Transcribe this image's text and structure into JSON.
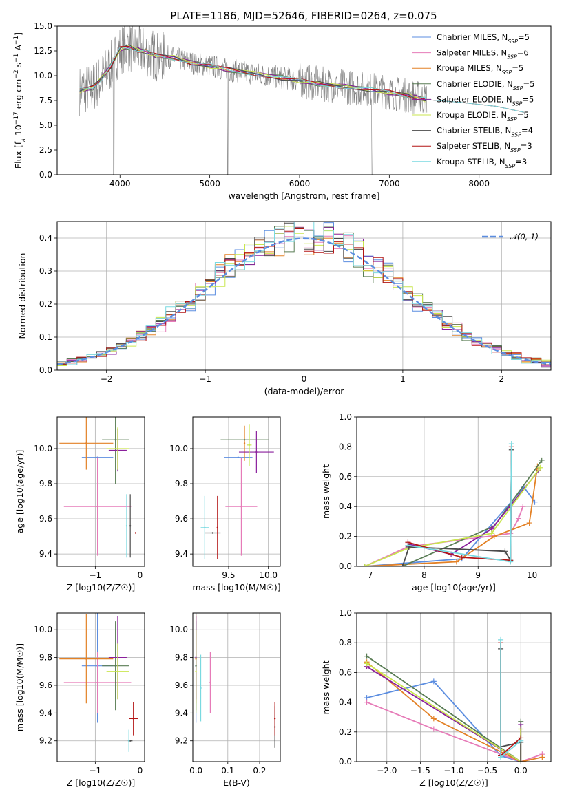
{
  "title": "PLATE=1186, MJD=52646, FIBERID=0264, z=0.075",
  "colors": {
    "Chabrier MILES": "#5b8de0",
    "Salpeter MILES": "#e67bb8",
    "Kroupa MILES": "#e38126",
    "Chabrier ELODIE": "#5a7d55",
    "Salpeter ELODIE": "#8a1f9c",
    "Kroupa ELODIE": "#c9e64e",
    "Chabrier STELIB": "#4a4a4a",
    "Salpeter STELIB": "#b31515",
    "Kroupa STELIB": "#79d9e0",
    "data": "#808080",
    "normal": "#5b8de0"
  },
  "legend": {
    "spectrum": [
      "Chabrier MILES, N_SSP=5",
      "Salpeter MILES, N_SSP=6",
      "Kroupa MILES, N_SSP=5",
      "Chabrier ELODIE, N_SSP=5",
      "Salpeter ELODIE, N_SSP=5",
      "Kroupa ELODIE, N_SSP=5",
      "Chabrier STELIB, N_SSP=4",
      "Salpeter STELIB, N_SSP=3",
      "Kroupa STELIB, N_SSP=3"
    ],
    "residual": "𝒩(0, 1)"
  },
  "chart_data": [
    {
      "type": "line",
      "name": "spectrum",
      "xlabel": "wavelength [Angstrom, rest frame]",
      "ylabel": "Flux [f_λ 10^-17 erg cm^-2 s^-1 A^-1]",
      "xlim": [
        3300,
        8800
      ],
      "ylim": [
        0,
        15
      ],
      "xticks": [
        4000,
        5000,
        6000,
        7000,
        8000
      ],
      "yticks": [
        0.0,
        2.5,
        5.0,
        7.5,
        10.0,
        12.5,
        15.0
      ],
      "grid": false,
      "legend_position": "top-right",
      "model_continuum": {
        "x": [
          3550,
          3700,
          3800,
          3900,
          4000,
          4100,
          4200,
          4300,
          4400,
          4600,
          4800,
          5000,
          5200,
          5500,
          5800,
          6000,
          6200,
          6500,
          6800,
          7000,
          7200,
          7300,
          7400
        ],
        "y": [
          8.5,
          8.8,
          9.8,
          11.0,
          12.7,
          12.9,
          12.6,
          12.4,
          12.0,
          11.8,
          11.3,
          11.0,
          10.6,
          10.2,
          9.8,
          9.5,
          9.2,
          8.9,
          8.6,
          8.3,
          8.0,
          7.8,
          7.6
        ]
      },
      "stelib_tail": {
        "x": [
          7400,
          7800,
          8200,
          8500
        ],
        "y": [
          7.6,
          7.3,
          6.9,
          6.3
        ]
      }
    },
    {
      "type": "bar",
      "name": "residual-histogram",
      "xlabel": "(data-model)/error",
      "ylabel": "Normed distribution",
      "xlim": [
        -2.5,
        2.5
      ],
      "ylim": [
        0,
        0.45
      ],
      "xticks": [
        -2,
        -1,
        0,
        1,
        2
      ],
      "yticks": [
        0.0,
        0.1,
        0.2,
        0.3,
        0.4
      ],
      "grid": true,
      "bin_edges_start": -2.5,
      "bin_width": 0.1,
      "nbins": 50,
      "normal_mean": 0,
      "normal_sigma": 1
    },
    {
      "type": "scatter",
      "name": "age-vs-Z",
      "xlabel": "Z [log10(Z/Z☉)]",
      "ylabel": "age [log10(age/yr)]",
      "xlim": [
        -1.85,
        0.1
      ],
      "ylim": [
        9.33,
        10.18
      ],
      "xticks": [
        -1,
        0
      ],
      "yticks": [
        9.4,
        9.6,
        9.8,
        10.0
      ],
      "grid": true,
      "points": [
        {
          "m": "Chabrier MILES",
          "x": -0.95,
          "xerr": 0.35,
          "y": 9.95,
          "yerr": 0.0
        },
        {
          "m": "Salpeter MILES",
          "x": -0.95,
          "xerr": 0.75,
          "y": 9.67,
          "yerr": 0.28
        },
        {
          "m": "Kroupa MILES",
          "x": -1.2,
          "xerr": 0.6,
          "y": 10.03,
          "yerr": 0.15
        },
        {
          "m": "Chabrier ELODIE",
          "x": -0.55,
          "xerr": 0.3,
          "y": 10.05,
          "yerr": 0.25
        },
        {
          "m": "Salpeter ELODIE",
          "x": -0.5,
          "xerr": 0.2,
          "y": 9.99,
          "yerr": 0.12
        },
        {
          "m": "Kroupa ELODIE",
          "x": -0.5,
          "xerr": 0.25,
          "y": 10.0,
          "yerr": 0.12
        },
        {
          "m": "Chabrier STELIB",
          "x": -0.22,
          "xerr": 0.0,
          "y": 9.56,
          "yerr": 0.18
        },
        {
          "m": "Salpeter STELIB",
          "x": -0.1,
          "xerr": 0.0,
          "y": 9.52,
          "yerr": 0.0
        },
        {
          "m": "Kroupa STELIB",
          "x": -0.3,
          "xerr": 0.0,
          "y": 9.56,
          "yerr": 0.18
        }
      ]
    },
    {
      "type": "scatter",
      "name": "age-vs-mass",
      "xlabel": "mass [log10(M/M☉)]",
      "ylabel": "",
      "xlim": [
        9.05,
        10.15
      ],
      "ylim": [
        9.33,
        10.18
      ],
      "xticks": [
        9.5,
        10.0
      ],
      "yticks": [
        9.4,
        9.6,
        9.8,
        10.0
      ],
      "grid": true,
      "points": [
        {
          "m": "Chabrier MILES",
          "x": 9.62,
          "xerr": 0.18,
          "y": 9.95,
          "yerr": 0.0
        },
        {
          "m": "Salpeter MILES",
          "x": 9.66,
          "xerr": 0.2,
          "y": 9.67,
          "yerr": 0.28
        },
        {
          "m": "Kroupa MILES",
          "x": 9.7,
          "xerr": 0.0,
          "y": 10.03,
          "yerr": 0.1
        },
        {
          "m": "Chabrier ELODIE",
          "x": 9.7,
          "xerr": 0.3,
          "y": 10.05,
          "yerr": 0.0
        },
        {
          "m": "Salpeter ELODIE",
          "x": 9.85,
          "xerr": 0.22,
          "y": 9.98,
          "yerr": 0.12
        },
        {
          "m": "Kroupa ELODIE",
          "x": 9.76,
          "xerr": 0.03,
          "y": 10.02,
          "yerr": 0.12
        },
        {
          "m": "Chabrier STELIB",
          "x": 9.3,
          "xerr": 0.1,
          "y": 9.52,
          "yerr": 0.0
        },
        {
          "m": "Salpeter STELIB",
          "x": 9.36,
          "xerr": 0.0,
          "y": 9.55,
          "yerr": 0.18
        },
        {
          "m": "Kroupa STELIB",
          "x": 9.2,
          "xerr": 0.05,
          "y": 9.55,
          "yerr": 0.18
        }
      ]
    },
    {
      "type": "line",
      "name": "mass-weight-vs-age",
      "xlabel": "age [log10(age/yr)]",
      "ylabel": "mass weight",
      "xlim": [
        6.75,
        10.35
      ],
      "ylim": [
        0,
        1
      ],
      "xticks": [
        7,
        8,
        9,
        10
      ],
      "yticks": [
        0.0,
        0.2,
        0.4,
        0.6,
        0.8,
        1.0
      ],
      "grid": true,
      "series": [
        {
          "m": "Chabrier MILES",
          "x": [
            6.9,
            8.7,
            9.85,
            10.05
          ],
          "y": [
            0.0,
            0.05,
            0.53,
            0.43
          ]
        },
        {
          "m": "Salpeter MILES",
          "x": [
            6.9,
            7.7,
            9.6,
            9.75,
            9.83
          ],
          "y": [
            0.0,
            0.13,
            0.22,
            0.32,
            0.4
          ]
        },
        {
          "m": "Kroupa MILES",
          "x": [
            6.9,
            8.6,
            9.3,
            9.95,
            10.1
          ],
          "y": [
            0.0,
            0.03,
            0.2,
            0.29,
            0.67
          ]
        },
        {
          "m": "Chabrier ELODIE",
          "x": [
            6.9,
            7.6,
            9.3,
            10.18
          ],
          "y": [
            0.0,
            0.0,
            0.27,
            0.71
          ]
        },
        {
          "m": "Salpeter ELODIE",
          "x": [
            7.7,
            8.5,
            9.25,
            10.12
          ],
          "y": [
            0.15,
            0.08,
            0.25,
            0.64
          ]
        },
        {
          "m": "Kroupa ELODIE",
          "x": [
            6.9,
            7.7,
            9.25,
            10.15
          ],
          "y": [
            0.0,
            0.12,
            0.22,
            0.66
          ]
        },
        {
          "m": "Chabrier STELIB",
          "x": [
            7.6,
            7.72,
            9.5,
            9.6,
            9.62
          ],
          "y": [
            0.0,
            0.13,
            0.1,
            0.04,
            0.78
          ]
        },
        {
          "m": "Salpeter STELIB",
          "x": [
            7.7,
            8.7,
            9.6,
            9.62
          ],
          "y": [
            0.16,
            0.06,
            0.04,
            0.8
          ]
        },
        {
          "m": "Kroupa STELIB",
          "x": [
            7.7,
            9.6,
            9.62
          ],
          "y": [
            0.14,
            0.03,
            0.82
          ]
        }
      ]
    },
    {
      "type": "scatter",
      "name": "mass-vs-Z",
      "xlabel": "Z [log10(Z/Z☉)]",
      "ylabel": "mass [log10(M/M☉)]",
      "xlim": [
        -1.85,
        0.1
      ],
      "ylim": [
        9.05,
        10.12
      ],
      "xticks": [
        -1,
        0
      ],
      "yticks": [
        9.2,
        9.4,
        9.6,
        9.8,
        10.0
      ],
      "grid": true,
      "points": [
        {
          "m": "Chabrier MILES",
          "x": -0.95,
          "xerr": 0.35,
          "y": 9.74,
          "yerr": 0.41
        },
        {
          "m": "Salpeter MILES",
          "x": -0.95,
          "xerr": 0.75,
          "y": 9.62,
          "yerr": 0.22
        },
        {
          "m": "Kroupa MILES",
          "x": -1.2,
          "xerr": 0.6,
          "y": 9.79,
          "yerr": 0.32
        },
        {
          "m": "Chabrier ELODIE",
          "x": -0.55,
          "xerr": 0.3,
          "y": 9.74,
          "yerr": 0.32
        },
        {
          "m": "Salpeter ELODIE",
          "x": -0.5,
          "xerr": 0.2,
          "y": 9.8,
          "yerr": 0.3
        },
        {
          "m": "Kroupa ELODIE",
          "x": -0.5,
          "xerr": 0.25,
          "y": 9.7,
          "yerr": 0.2
        },
        {
          "m": "Chabrier STELIB",
          "x": -0.22,
          "xerr": 0.05,
          "y": 9.2,
          "yerr": 0.0
        },
        {
          "m": "Salpeter STELIB",
          "x": -0.15,
          "xerr": 0.1,
          "y": 9.36,
          "yerr": 0.12
        },
        {
          "m": "Kroupa STELIB",
          "x": -0.25,
          "xerr": 0.0,
          "y": 9.2,
          "yerr": 0.08
        }
      ]
    },
    {
      "type": "scatter",
      "name": "mass-vs-ebv",
      "xlabel": "E(B-V)",
      "ylabel": "",
      "xlim": [
        -0.01,
        0.265
      ],
      "ylim": [
        9.05,
        10.12
      ],
      "xticks": [
        0.0,
        0.1,
        0.2
      ],
      "yticks": [
        9.2,
        9.4,
        9.6,
        9.8,
        10.0
      ],
      "grid": true,
      "points": [
        {
          "m": "Chabrier MILES",
          "x": 0.0,
          "xerr": 0.0,
          "y": 9.74,
          "yerr": 0.41
        },
        {
          "m": "Salpeter MILES",
          "x": 0.045,
          "xerr": 0.0,
          "y": 9.62,
          "yerr": 0.22
        },
        {
          "m": "Kroupa MILES",
          "x": 0.0,
          "xerr": 0.0,
          "y": 9.79,
          "yerr": 0.32
        },
        {
          "m": "Chabrier ELODIE",
          "x": 0.0,
          "xerr": 0.0,
          "y": 9.74,
          "yerr": 0.32
        },
        {
          "m": "Salpeter ELODIE",
          "x": 0.0,
          "xerr": 0.0,
          "y": 9.8,
          "yerr": 0.3
        },
        {
          "m": "Kroupa ELODIE",
          "x": 0.0,
          "xerr": 0.0,
          "y": 9.7,
          "yerr": 0.3
        },
        {
          "m": "Chabrier STELIB",
          "x": 0.248,
          "xerr": 0.0,
          "y": 9.3,
          "yerr": 0.15
        },
        {
          "m": "Salpeter STELIB",
          "x": 0.248,
          "xerr": 0.0,
          "y": 9.36,
          "yerr": 0.12
        },
        {
          "m": "Kroupa STELIB",
          "x": 0.015,
          "xerr": 0.0,
          "y": 9.58,
          "yerr": 0.24
        }
      ]
    },
    {
      "type": "line",
      "name": "mass-weight-vs-Z",
      "xlabel": "Z [log10(Z/Z☉)]",
      "ylabel": "mass weight",
      "xlim": [
        -2.45,
        0.45
      ],
      "ylim": [
        0,
        1
      ],
      "xticks": [
        -2.0,
        -1.5,
        -1.0,
        -0.5,
        0.0
      ],
      "yticks": [
        0.0,
        0.2,
        0.4,
        0.6,
        0.8,
        1.0
      ],
      "grid": true,
      "series": [
        {
          "m": "Chabrier MILES",
          "x": [
            -2.3,
            -1.3,
            -0.3,
            0.0
          ],
          "y": [
            0.43,
            0.54,
            0.04,
            0.0
          ]
        },
        {
          "m": "Salpeter MILES",
          "x": [
            -2.3,
            -1.3,
            0.0,
            0.32
          ],
          "y": [
            0.4,
            0.22,
            0.0,
            0.05
          ]
        },
        {
          "m": "Kroupa MILES",
          "x": [
            -2.3,
            -1.3,
            0.0,
            0.32
          ],
          "y": [
            0.67,
            0.29,
            0.0,
            0.03
          ]
        },
        {
          "m": "Chabrier ELODIE",
          "x": [
            -2.3,
            0.0,
            0.0
          ],
          "y": [
            0.71,
            0.0,
            0.27
          ]
        },
        {
          "m": "Salpeter ELODIE",
          "x": [
            -2.3,
            0.0,
            0.0
          ],
          "y": [
            0.64,
            0.0,
            0.25
          ]
        },
        {
          "m": "Kroupa ELODIE",
          "x": [
            -2.3,
            0.0,
            0.0
          ],
          "y": [
            0.66,
            0.0,
            0.22
          ]
        },
        {
          "m": "Chabrier STELIB",
          "x": [
            -0.3,
            -0.3,
            0.0,
            0.0
          ],
          "y": [
            0.76,
            0.1,
            0.13,
            0.0
          ]
        },
        {
          "m": "Salpeter STELIB",
          "x": [
            -0.3,
            -0.3,
            0.0
          ],
          "y": [
            0.8,
            0.04,
            0.16
          ]
        },
        {
          "m": "Kroupa STELIB",
          "x": [
            -0.3,
            -0.3,
            0.0
          ],
          "y": [
            0.82,
            0.03,
            0.14
          ]
        }
      ]
    }
  ]
}
